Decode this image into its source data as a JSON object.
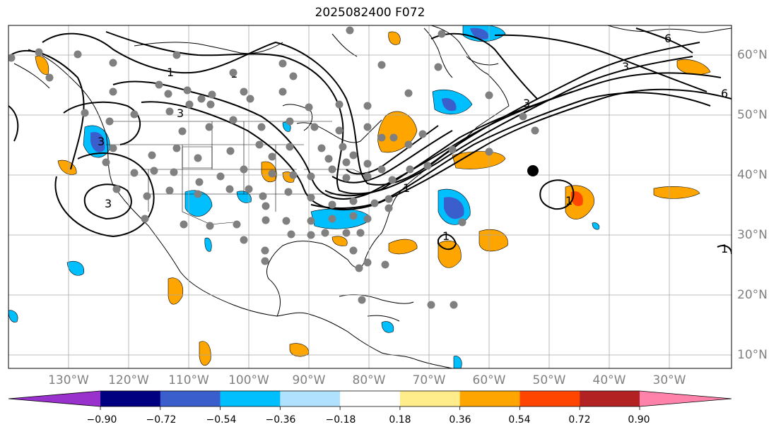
{
  "title": "2025082400 F072",
  "lat_labels": [
    "60°N",
    "50°N",
    "40°N",
    "30°N",
    "20°N",
    "10°N"
  ],
  "lon_labels": [
    "130°W",
    "120°W",
    "110°W",
    "100°W",
    "90°W",
    "80°W",
    "70°W",
    "60°W",
    "50°W",
    "40°W",
    "30°W"
  ],
  "colorbar": {
    "colors": [
      "#9932cc",
      "#000080",
      "#3a5fcd",
      "#00bfff",
      "#b0e2ff",
      "#ffffff",
      "#ffec8b",
      "#ffa500",
      "#ff4500",
      "#b22222",
      "#ff82ab"
    ],
    "tick_labels": [
      "−0.90",
      "−0.72",
      "−0.54",
      "−0.36",
      "−0.18",
      "0.18",
      "0.36",
      "0.54",
      "0.72",
      "0.90"
    ]
  },
  "contour_labels": [
    "1",
    "3",
    "1",
    "3",
    "3",
    "3",
    "1",
    "3",
    "6",
    "6",
    "1",
    "1",
    "1"
  ],
  "colors": {
    "land_outline": "#000000",
    "grid": "#a9a9a9",
    "stations": "#808080",
    "axis_label": "#808080"
  }
}
